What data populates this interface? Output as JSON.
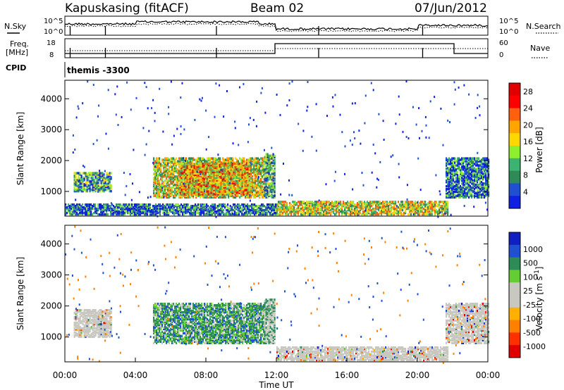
{
  "header": {
    "station": "Kapuskasing (fitACF)",
    "beam": "Beam 02",
    "date": "07/Jun/2012"
  },
  "status_panel": {
    "nsky_label": "N.Sky",
    "nsky_ticks": [
      "10^5",
      "10^0"
    ],
    "nsearch_label": "N.Search",
    "nsearch_ticks": [
      "10^5",
      "10^0"
    ],
    "freq_label_1": "Freq.",
    "freq_label_2": "[MHz]",
    "freq_ticks": [
      "18",
      "8"
    ],
    "nave_label": "Nave",
    "nave_ticks": [
      "60",
      "0"
    ],
    "cpid_label": "CPID",
    "cpid_value": "themis -3300"
  },
  "colors": {
    "power_scale": [
      "#1020e0",
      "#2050d0",
      "#2e8b57",
      "#3cb371",
      "#90ee30",
      "#ffd700",
      "#ffa500",
      "#ff6010",
      "#ff0000",
      "#e00000"
    ],
    "velocity_scale": [
      "#e00000",
      "#ff3000",
      "#ff8000",
      "#ffb000",
      "#c8c8c0",
      "#c8c8c0",
      "#66cc33",
      "#2e8b57",
      "#2050d0",
      "#1020c0"
    ]
  },
  "chart_data": [
    {
      "type": "heatmap",
      "name": "power",
      "ylabel": "Slant Range [km]",
      "yticks": [
        "1000",
        "2000",
        "3000",
        "4000"
      ],
      "ylim": [
        200,
        4600
      ],
      "xlim": [
        0,
        24
      ],
      "colorbar_label": "Power [dB]",
      "colorbar_ticks": [
        "4",
        "8",
        "12",
        "16",
        "20",
        "24",
        "28"
      ],
      "colorbar_range": [
        0,
        30
      ],
      "regions": [
        {
          "t0": 0.5,
          "t1": 2.6,
          "r0": 1000,
          "r1": 1600,
          "level": 8
        },
        {
          "t0": 5.0,
          "t1": 11.3,
          "r0": 800,
          "r1": 2100,
          "level": 14
        },
        {
          "t0": 6.5,
          "t1": 10.5,
          "r0": 900,
          "r1": 1900,
          "level": 18
        },
        {
          "t0": 11.3,
          "t1": 11.9,
          "r0": 800,
          "r1": 2200,
          "level": 8
        },
        {
          "t0": 12.0,
          "t1": 21.7,
          "r0": 250,
          "r1": 700,
          "level": 16
        },
        {
          "t0": 0,
          "t1": 12.0,
          "r0": 250,
          "r1": 600,
          "level": 6
        },
        {
          "t0": 21.6,
          "t1": 24,
          "r0": 800,
          "r1": 2100,
          "level": 7
        }
      ]
    },
    {
      "type": "heatmap",
      "name": "velocity",
      "ylabel": "Slant Range [km]",
      "yticks": [
        "1000",
        "2000",
        "3000",
        "4000"
      ],
      "ylim": [
        200,
        4600
      ],
      "xlim": [
        0,
        24
      ],
      "xticks": [
        "00:00",
        "04:00",
        "08:00",
        "12:00",
        "16:00",
        "20:00",
        "00:00"
      ],
      "xlabel": "Time UT",
      "colorbar_label": "Velocity [m s^-1]",
      "colorbar_ticks": [
        "1000",
        "500",
        "100",
        "25",
        "-25",
        "-100",
        "-500",
        "-1000"
      ],
      "regions": [
        {
          "t0": 0.5,
          "t1": 2.6,
          "r0": 1000,
          "r1": 1900,
          "level": "0"
        },
        {
          "t0": 5.0,
          "t1": 11.3,
          "r0": 800,
          "r1": 2100,
          "level": "100"
        },
        {
          "t0": 11.3,
          "t1": 11.9,
          "r0": 800,
          "r1": 2200,
          "level": "25"
        },
        {
          "t0": 12.0,
          "t1": 21.7,
          "r0": 250,
          "r1": 700,
          "level": "0"
        },
        {
          "t0": 21.6,
          "t1": 24,
          "r0": 800,
          "r1": 2100,
          "level": "0"
        }
      ]
    }
  ]
}
